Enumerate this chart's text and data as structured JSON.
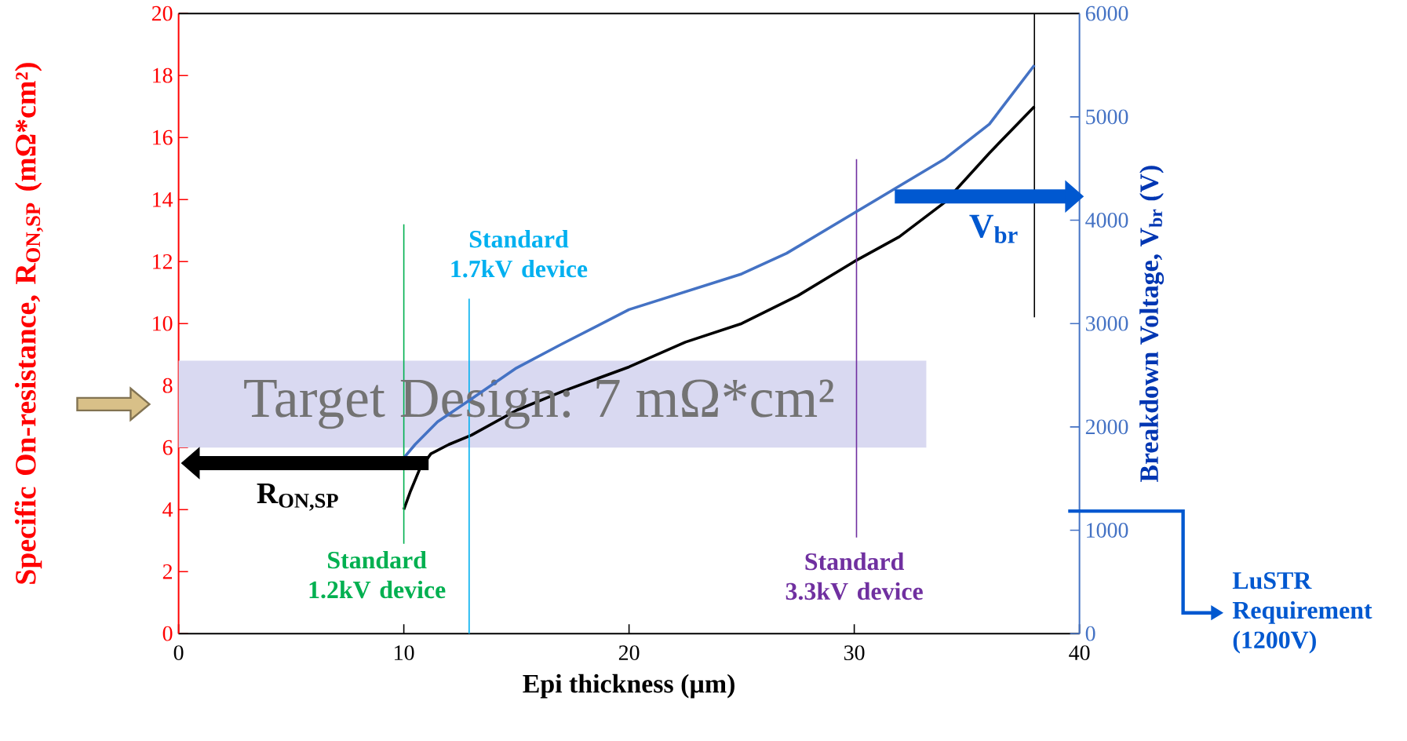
{
  "chart_data": {
    "type": "line",
    "xlabel": "Epi thickness (µm)",
    "ylabel": "Specific On-resistance, R$_{ON,SP}$ (mΩ*cm²)",
    "y2label": "Breakdown Voltage, V$_{br}$ (V)",
    "xlim": [
      0,
      40
    ],
    "xticks": [
      0,
      10,
      20,
      30,
      40
    ],
    "ylim": [
      0,
      20
    ],
    "yticks": [
      0,
      2,
      4,
      6,
      8,
      10,
      12,
      14,
      16,
      18,
      20
    ],
    "y2lim": [
      0,
      6000
    ],
    "y2ticks": [
      0,
      1000,
      2000,
      3000,
      4000,
      5000,
      6000
    ],
    "series": [
      {
        "color": "#000000",
        "x": [
          10,
          10.3,
          10.7,
          11.2,
          12,
          13,
          15,
          17,
          20,
          22.5,
          25,
          27.5,
          30,
          32,
          34,
          36,
          38
        ],
        "values": [
          4.0,
          4.6,
          5.3,
          5.8,
          6.1,
          6.4,
          7.2,
          7.8,
          8.6,
          9.4,
          10.0,
          10.9,
          12.0,
          12.8,
          13.9,
          15.5,
          17.0
        ]
      },
      {
        "color": "#4472c4",
        "axis": "y2",
        "x": [
          10,
          10.5,
          11.5,
          13,
          15,
          17,
          20,
          25,
          27,
          30,
          32,
          34,
          36,
          38
        ],
        "values": [
          1700,
          1830,
          2050,
          2270,
          2570,
          2800,
          3135,
          3480,
          3680,
          4070,
          4330,
          4590,
          4930,
          5500
        ]
      },
      {
        "color": "#00b050",
        "x": [
          10,
          10
        ],
        "values": [
          2.9,
          13.2
        ]
      },
      {
        "color": "#00b0f0",
        "x": [
          12.9,
          12.9
        ],
        "values": [
          0,
          10.8
        ]
      },
      {
        "color": "#7030a0",
        "x": [
          30.1,
          30.1
        ],
        "values": [
          3.1,
          15.3
        ]
      },
      {
        "color": "#000000",
        "x": [
          38,
          38
        ],
        "values": [
          10.2,
          20
        ]
      }
    ],
    "bands": [
      {
        "axis": "y",
        "from": 6,
        "to": 8.8,
        "label": "Target Design: 7 mΩ*cm²",
        "color": "#d9d9f1"
      }
    ],
    "annotations": [
      "Standard 1.2kV device",
      "Standard 1.7kV device",
      "Standard 3.3kV device",
      "R$_{ON,SP}$",
      "V$_{br}$",
      "LuSTR Requirement (1200V)"
    ]
  }
}
